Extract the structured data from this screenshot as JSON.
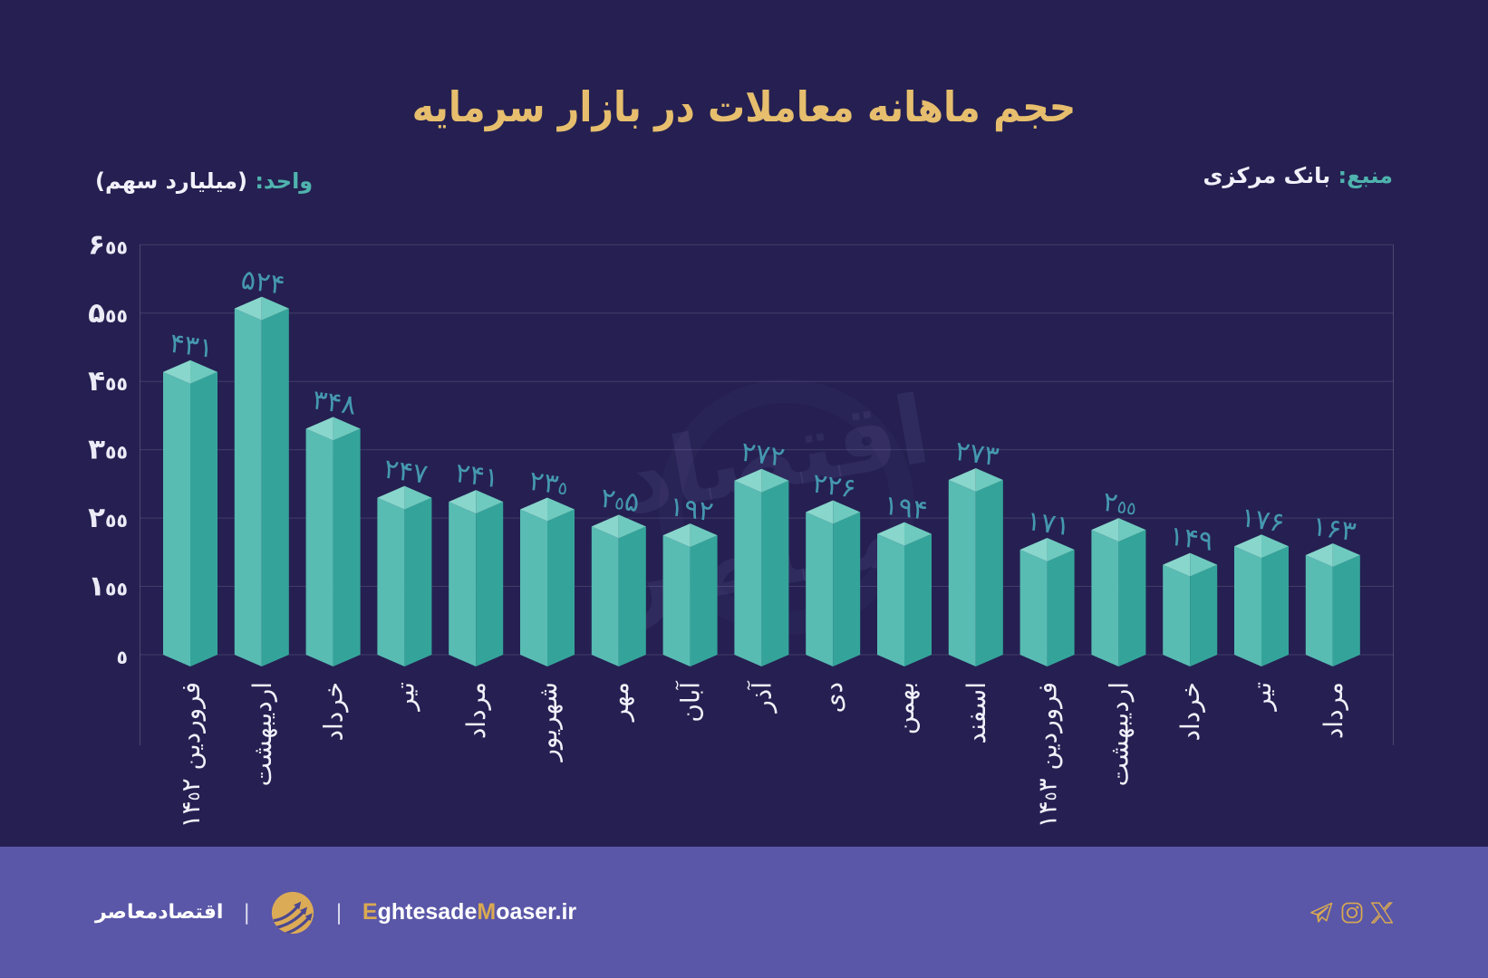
{
  "page": {
    "background": "#252051",
    "footer_background": "#5a57a8"
  },
  "header": {
    "title": "حجم ماهانه معاملات در بازار سرمایه",
    "source_prefix": "منبع:",
    "source_value": " بانک مرکزی",
    "unit_prefix": "واحد:",
    "unit_value": " (میلیارد سهم)"
  },
  "chart_data": {
    "type": "bar",
    "style": "3d-prism-isometric",
    "title": "حجم ماهانه معاملات در بازار سرمایه",
    "xlabel": "",
    "ylabel": "میلیارد سهم",
    "source": "بانک مرکزی",
    "categories": [
      "فروردین ۱۴۰۲",
      "اردیبهشت",
      "خرداد",
      "تیر",
      "مرداد",
      "شهریور",
      "مهر",
      "آبان",
      "آذر",
      "دی",
      "بهمن",
      "اسفند",
      "فروردین ۱۴۰۳",
      "اردیبهشت",
      "خرداد",
      "تیر",
      "مرداد"
    ],
    "values": [
      431,
      524,
      348,
      247,
      241,
      230,
      205,
      192,
      272,
      226,
      194,
      273,
      171,
      200,
      149,
      176,
      163
    ],
    "value_labels_fa": [
      "۴۳۱",
      "۵۲۴",
      "۳۴۸",
      "۲۴۷",
      "۲۴۱",
      "۲۳۰",
      "۲۰۵",
      "۱۹۲",
      "۲۷۲",
      "۲۲۶",
      "۱۹۴",
      "۲۷۳",
      "۱۷۱",
      "۲۰۰",
      "۱۴۹",
      "۱۷۶",
      "۱۶۳"
    ],
    "y_ticks": [
      0,
      100,
      200,
      300,
      400,
      500,
      600
    ],
    "y_tick_labels_fa": [
      "۰",
      "۱۰۰",
      "۲۰۰",
      "۳۰۰",
      "۴۰۰",
      "۵۰۰",
      "۶۰۰"
    ],
    "ylim": [
      0,
      600
    ],
    "grid": true,
    "legend": false,
    "colors": {
      "bar_face_left": "#58bcb3",
      "bar_face_right": "#34a49a",
      "bar_top_left": "#89d6cc",
      "bar_top_right": "#6ecabe",
      "value_label": "#4598b0",
      "tick_label": "#eceaf6",
      "category_label": "#f2f0fa",
      "gridline": "rgba(255,255,255,0.13)",
      "axis_line": "rgba(255,255,255,0.18)"
    }
  },
  "watermark": {
    "line1": "اقتصاد",
    "line2": "معاصر",
    "color": "rgba(165,155,235,0.09)",
    "swoosh_color": "rgba(165,155,235,0.04)"
  },
  "footer": {
    "brand_fa": "اقتصادمعاصر",
    "divider": "|",
    "site_segments": [
      {
        "text": "E",
        "gold": true
      },
      {
        "text": "ghtesade",
        "gold": false
      },
      {
        "text": "M",
        "gold": true
      },
      {
        "text": "oaser.ir",
        "gold": false
      }
    ],
    "social_icons": [
      "telegram-icon",
      "instagram-icon",
      "x-icon"
    ],
    "gold": "#d9a952",
    "logo_circle": "#dcab56",
    "logo_swoosh": "#4b4890"
  }
}
